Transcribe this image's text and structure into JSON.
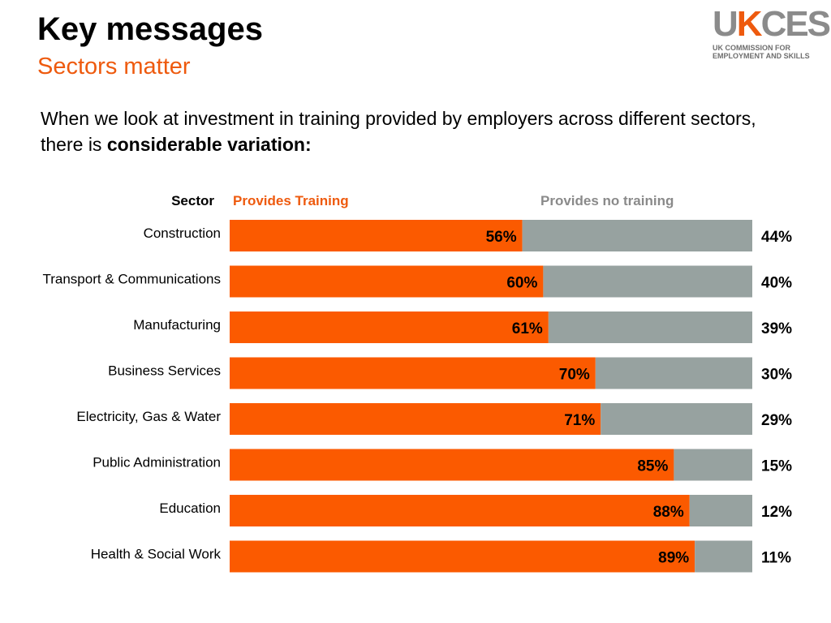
{
  "header": {
    "title": "Key messages",
    "subtitle": "Sectors matter"
  },
  "logo": {
    "mark": "UKCES",
    "line1": "UK COMMISSION FOR",
    "line2": "EMPLOYMENT AND SKILLS"
  },
  "intro": {
    "text": "When we look at investment in training provided by employers across different sectors, there is ",
    "emphasis": "considerable variation:"
  },
  "colors": {
    "accent": "#ee5a0e",
    "training": "#fb5a00",
    "no_training": "#97a2a0",
    "legend_no_training": "#8a8a8a"
  },
  "chart_data": {
    "type": "bar",
    "orientation": "horizontal",
    "stacked": true,
    "category_header": "Sector",
    "categories": [
      "Construction",
      "Transport & Communications",
      "Manufacturing",
      "Business Services",
      "Electricity, Gas & Water",
      "Public Administration",
      "Education",
      "Health & Social Work"
    ],
    "series": [
      {
        "name": "Provides Training",
        "values": [
          56,
          60,
          61,
          70,
          71,
          85,
          88,
          89
        ]
      },
      {
        "name": "Provides no training",
        "values": [
          44,
          40,
          39,
          30,
          29,
          15,
          12,
          11
        ]
      }
    ],
    "unit": "%",
    "xlim": [
      0,
      100
    ],
    "grid": false,
    "legend": "top"
  }
}
